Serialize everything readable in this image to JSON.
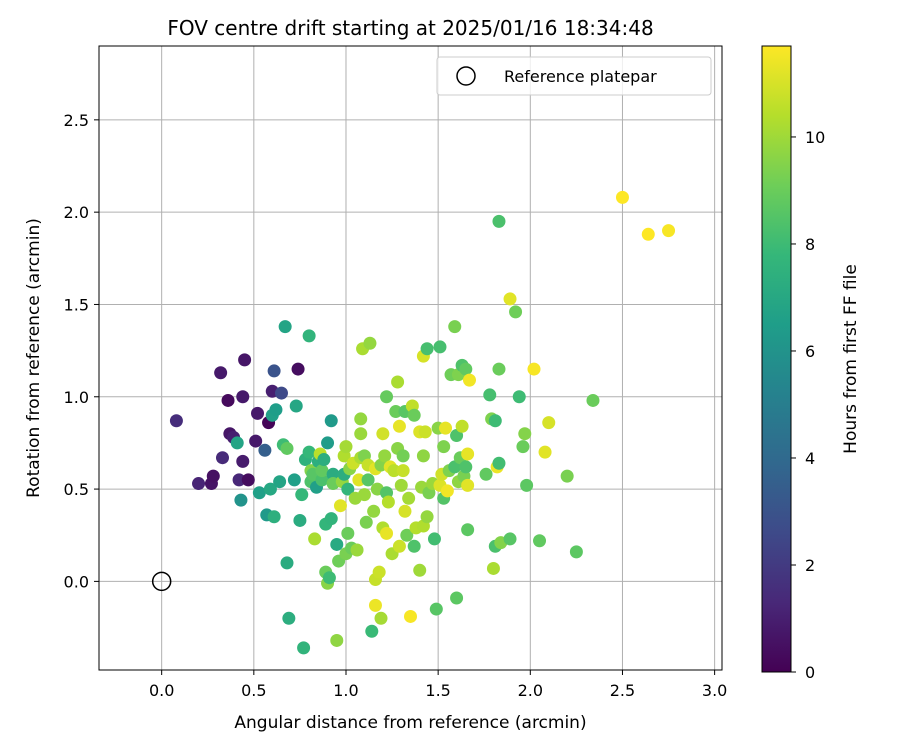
{
  "chart_data": {
    "type": "scatter",
    "title": "FOV centre drift starting at 2025/01/16 18:34:48",
    "xlabel": "Angular distance from reference (arcmin)",
    "ylabel": "Rotation from reference (arcmin)",
    "xlim": [
      -0.34,
      3.04
    ],
    "ylim": [
      -0.48,
      2.9
    ],
    "x_ticks": [
      0.0,
      0.5,
      1.0,
      1.5,
      2.0,
      2.5,
      3.0
    ],
    "y_ticks": [
      0.0,
      0.5,
      1.0,
      1.5,
      2.0,
      2.5
    ],
    "grid": true,
    "legend": {
      "placement": "top-right",
      "entries": [
        "Reference platepar"
      ]
    },
    "reference_point": {
      "name": "Reference platepar",
      "x": 0.0,
      "y": 0.0,
      "marker": "open-circle"
    },
    "colorbar": {
      "label": "Hours from first FF file",
      "colormap": "viridis",
      "range": [
        0,
        11.7
      ],
      "ticks": [
        0,
        2,
        4,
        6,
        8,
        10
      ]
    },
    "series": [
      {
        "value_field": "c (hours)",
        "points": [
          {
            "x": 0.08,
            "y": 0.87,
            "c": 1.5
          },
          {
            "x": 0.2,
            "y": 0.53,
            "c": 1.2
          },
          {
            "x": 0.27,
            "y": 0.53,
            "c": 0.6
          },
          {
            "x": 0.28,
            "y": 0.57,
            "c": 0.5
          },
          {
            "x": 0.32,
            "y": 1.13,
            "c": 0.8
          },
          {
            "x": 0.33,
            "y": 0.67,
            "c": 1.4
          },
          {
            "x": 0.36,
            "y": 0.98,
            "c": 0.3
          },
          {
            "x": 0.37,
            "y": 0.8,
            "c": 0.7
          },
          {
            "x": 0.39,
            "y": 0.78,
            "c": 1.0
          },
          {
            "x": 0.41,
            "y": 0.75,
            "c": 6.8
          },
          {
            "x": 0.42,
            "y": 0.55,
            "c": 1.3
          },
          {
            "x": 0.43,
            "y": 0.44,
            "c": 6.0
          },
          {
            "x": 0.44,
            "y": 0.65,
            "c": 0.9
          },
          {
            "x": 0.44,
            "y": 1.0,
            "c": 0.8
          },
          {
            "x": 0.45,
            "y": 1.2,
            "c": 0.7
          },
          {
            "x": 0.47,
            "y": 0.55,
            "c": 0.4
          },
          {
            "x": 0.51,
            "y": 0.76,
            "c": 0.8
          },
          {
            "x": 0.52,
            "y": 0.91,
            "c": 0.8
          },
          {
            "x": 0.53,
            "y": 0.48,
            "c": 6.6
          },
          {
            "x": 0.56,
            "y": 0.71,
            "c": 3.5
          },
          {
            "x": 0.57,
            "y": 0.36,
            "c": 6.3
          },
          {
            "x": 0.58,
            "y": 0.86,
            "c": 0.1
          },
          {
            "x": 0.59,
            "y": 0.5,
            "c": 7.0
          },
          {
            "x": 0.6,
            "y": 1.03,
            "c": 1.0
          },
          {
            "x": 0.6,
            "y": 0.9,
            "c": 6.6
          },
          {
            "x": 0.61,
            "y": 1.14,
            "c": 3.0
          },
          {
            "x": 0.61,
            "y": 0.35,
            "c": 7.4
          },
          {
            "x": 0.62,
            "y": 0.93,
            "c": 6.5
          },
          {
            "x": 0.64,
            "y": 0.54,
            "c": 6.8
          },
          {
            "x": 0.65,
            "y": 1.02,
            "c": 2.6
          },
          {
            "x": 0.66,
            "y": 0.74,
            "c": 8.0
          },
          {
            "x": 0.67,
            "y": 1.38,
            "c": 6.8
          },
          {
            "x": 0.68,
            "y": 0.72,
            "c": 8.8
          },
          {
            "x": 0.68,
            "y": 0.1,
            "c": 7.2
          },
          {
            "x": 0.69,
            "y": -0.2,
            "c": 7.3
          },
          {
            "x": 0.72,
            "y": 0.55,
            "c": 6.6
          },
          {
            "x": 0.73,
            "y": 0.95,
            "c": 6.9
          },
          {
            "x": 0.74,
            "y": 1.15,
            "c": 0.4
          },
          {
            "x": 0.75,
            "y": 0.33,
            "c": 7.2
          },
          {
            "x": 0.76,
            "y": 0.47,
            "c": 7.8
          },
          {
            "x": 0.77,
            "y": -0.36,
            "c": 7.6
          },
          {
            "x": 0.78,
            "y": 0.66,
            "c": 7.5
          },
          {
            "x": 0.8,
            "y": 1.33,
            "c": 7.6
          },
          {
            "x": 0.8,
            "y": 0.7,
            "c": 7.8
          },
          {
            "x": 0.81,
            "y": 0.54,
            "c": 8.4
          },
          {
            "x": 0.81,
            "y": 0.6,
            "c": 9.5
          },
          {
            "x": 0.82,
            "y": 0.58,
            "c": 8.6
          },
          {
            "x": 0.83,
            "y": 0.23,
            "c": 10.2
          },
          {
            "x": 0.84,
            "y": 0.51,
            "c": 6.6
          },
          {
            "x": 0.85,
            "y": 0.65,
            "c": 7.4
          },
          {
            "x": 0.86,
            "y": 0.69,
            "c": 10.5
          },
          {
            "x": 0.87,
            "y": 0.55,
            "c": 8.3
          },
          {
            "x": 0.87,
            "y": 0.6,
            "c": 8.8
          },
          {
            "x": 0.88,
            "y": 0.66,
            "c": 7.3
          },
          {
            "x": 0.89,
            "y": 0.05,
            "c": 9.0
          },
          {
            "x": 0.89,
            "y": 0.31,
            "c": 7.7
          },
          {
            "x": 0.9,
            "y": -0.01,
            "c": 9.6
          },
          {
            "x": 0.9,
            "y": 0.75,
            "c": 6.4
          },
          {
            "x": 0.91,
            "y": 0.02,
            "c": 8.0
          },
          {
            "x": 0.92,
            "y": 0.87,
            "c": 6.3
          },
          {
            "x": 0.92,
            "y": 0.34,
            "c": 7.6
          },
          {
            "x": 0.93,
            "y": 0.58,
            "c": 7.2
          },
          {
            "x": 0.93,
            "y": 0.53,
            "c": 9.0
          },
          {
            "x": 0.95,
            "y": -0.32,
            "c": 9.7
          },
          {
            "x": 0.95,
            "y": 0.2,
            "c": 7.1
          },
          {
            "x": 0.96,
            "y": 0.11,
            "c": 9.1
          },
          {
            "x": 0.97,
            "y": 0.41,
            "c": 11.2
          },
          {
            "x": 0.98,
            "y": 0.54,
            "c": 9.8
          },
          {
            "x": 0.99,
            "y": 0.58,
            "c": 7.3
          },
          {
            "x": 0.99,
            "y": 0.68,
            "c": 10.3
          },
          {
            "x": 1.0,
            "y": 0.73,
            "c": 10.1
          },
          {
            "x": 1.0,
            "y": 0.15,
            "c": 9.3
          },
          {
            "x": 1.01,
            "y": 0.5,
            "c": 7.7
          },
          {
            "x": 1.01,
            "y": 0.26,
            "c": 9.0
          },
          {
            "x": 1.02,
            "y": 0.61,
            "c": 9.6
          },
          {
            "x": 1.03,
            "y": 0.18,
            "c": 9.0
          },
          {
            "x": 1.04,
            "y": 0.64,
            "c": 10.8
          },
          {
            "x": 1.05,
            "y": 0.45,
            "c": 9.9
          },
          {
            "x": 1.06,
            "y": 0.17,
            "c": 9.9
          },
          {
            "x": 1.07,
            "y": 0.55,
            "c": 11.2
          },
          {
            "x": 1.08,
            "y": 0.67,
            "c": 10.2
          },
          {
            "x": 1.08,
            "y": 0.88,
            "c": 9.8
          },
          {
            "x": 1.08,
            "y": 0.8,
            "c": 9.9
          },
          {
            "x": 1.09,
            "y": 1.26,
            "c": 10.2
          },
          {
            "x": 1.1,
            "y": 0.47,
            "c": 9.9
          },
          {
            "x": 1.1,
            "y": 0.68,
            "c": 9.4
          },
          {
            "x": 1.11,
            "y": 0.32,
            "c": 9.3
          },
          {
            "x": 1.12,
            "y": 0.63,
            "c": 10.7
          },
          {
            "x": 1.12,
            "y": 0.55,
            "c": 8.6
          },
          {
            "x": 1.13,
            "y": 1.29,
            "c": 9.8
          },
          {
            "x": 1.14,
            "y": -0.27,
            "c": 7.9
          },
          {
            "x": 1.15,
            "y": 0.38,
            "c": 9.8
          },
          {
            "x": 1.16,
            "y": 0.61,
            "c": 11.2
          },
          {
            "x": 1.16,
            "y": 0.01,
            "c": 10.7
          },
          {
            "x": 1.16,
            "y": -0.13,
            "c": 11.4
          },
          {
            "x": 1.17,
            "y": 0.5,
            "c": 9.6
          },
          {
            "x": 1.18,
            "y": 0.05,
            "c": 10.8
          },
          {
            "x": 1.19,
            "y": 0.63,
            "c": 9.5
          },
          {
            "x": 1.19,
            "y": -0.2,
            "c": 10.1
          },
          {
            "x": 1.2,
            "y": 0.29,
            "c": 10.3
          },
          {
            "x": 1.2,
            "y": 0.8,
            "c": 10.9
          },
          {
            "x": 1.21,
            "y": 0.68,
            "c": 9.8
          },
          {
            "x": 1.22,
            "y": 0.26,
            "c": 11.3
          },
          {
            "x": 1.22,
            "y": 1.0,
            "c": 8.9
          },
          {
            "x": 1.22,
            "y": 0.48,
            "c": 8.5
          },
          {
            "x": 1.23,
            "y": 0.43,
            "c": 10.4
          },
          {
            "x": 1.24,
            "y": 0.62,
            "c": 11.2
          },
          {
            "x": 1.25,
            "y": 0.15,
            "c": 10.2
          },
          {
            "x": 1.26,
            "y": 0.6,
            "c": 10.5
          },
          {
            "x": 1.27,
            "y": 0.92,
            "c": 9.0
          },
          {
            "x": 1.28,
            "y": 1.08,
            "c": 10.2
          },
          {
            "x": 1.28,
            "y": 0.72,
            "c": 9.6
          },
          {
            "x": 1.29,
            "y": 0.19,
            "c": 10.8
          },
          {
            "x": 1.29,
            "y": 0.84,
            "c": 11.3
          },
          {
            "x": 1.3,
            "y": 0.52,
            "c": 10.0
          },
          {
            "x": 1.31,
            "y": 0.68,
            "c": 9.2
          },
          {
            "x": 1.31,
            "y": 0.6,
            "c": 10.7
          },
          {
            "x": 1.32,
            "y": 0.92,
            "c": 8.6
          },
          {
            "x": 1.32,
            "y": 0.38,
            "c": 11.0
          },
          {
            "x": 1.33,
            "y": 0.25,
            "c": 9.1
          },
          {
            "x": 1.34,
            "y": 0.45,
            "c": 10.1
          },
          {
            "x": 1.35,
            "y": -0.19,
            "c": 11.6
          },
          {
            "x": 1.36,
            "y": 0.95,
            "c": 10.6
          },
          {
            "x": 1.37,
            "y": 0.9,
            "c": 9.0
          },
          {
            "x": 1.37,
            "y": 0.19,
            "c": 8.4
          },
          {
            "x": 1.38,
            "y": 0.29,
            "c": 10.4
          },
          {
            "x": 1.4,
            "y": 0.06,
            "c": 10.0
          },
          {
            "x": 1.4,
            "y": 0.81,
            "c": 11.1
          },
          {
            "x": 1.41,
            "y": 0.51,
            "c": 9.9
          },
          {
            "x": 1.42,
            "y": 0.3,
            "c": 10.3
          },
          {
            "x": 1.42,
            "y": 1.22,
            "c": 11.0
          },
          {
            "x": 1.42,
            "y": 0.68,
            "c": 9.7
          },
          {
            "x": 1.43,
            "y": 0.81,
            "c": 10.8
          },
          {
            "x": 1.44,
            "y": 0.35,
            "c": 9.8
          },
          {
            "x": 1.44,
            "y": 1.26,
            "c": 8.2
          },
          {
            "x": 1.45,
            "y": 0.48,
            "c": 9.3
          },
          {
            "x": 1.47,
            "y": 0.53,
            "c": 9.9
          },
          {
            "x": 1.48,
            "y": 0.23,
            "c": 8.1
          },
          {
            "x": 1.49,
            "y": -0.15,
            "c": 8.6
          },
          {
            "x": 1.5,
            "y": 0.83,
            "c": 9.6
          },
          {
            "x": 1.51,
            "y": 0.52,
            "c": 11.1
          },
          {
            "x": 1.51,
            "y": 1.27,
            "c": 8.2
          },
          {
            "x": 1.52,
            "y": 0.58,
            "c": 10.9
          },
          {
            "x": 1.53,
            "y": 0.45,
            "c": 8.5
          },
          {
            "x": 1.53,
            "y": 0.73,
            "c": 9.4
          },
          {
            "x": 1.54,
            "y": 0.83,
            "c": 11.3
          },
          {
            "x": 1.55,
            "y": 0.49,
            "c": 11.5
          },
          {
            "x": 1.56,
            "y": 0.6,
            "c": 9.4
          },
          {
            "x": 1.57,
            "y": 1.12,
            "c": 9.1
          },
          {
            "x": 1.59,
            "y": 0.62,
            "c": 8.3
          },
          {
            "x": 1.59,
            "y": 1.38,
            "c": 9.3
          },
          {
            "x": 1.6,
            "y": -0.09,
            "c": 8.7
          },
          {
            "x": 1.6,
            "y": 0.79,
            "c": 8.4
          },
          {
            "x": 1.61,
            "y": 1.12,
            "c": 9.4
          },
          {
            "x": 1.61,
            "y": 0.54,
            "c": 9.7
          },
          {
            "x": 1.62,
            "y": 0.67,
            "c": 9.0
          },
          {
            "x": 1.63,
            "y": 1.17,
            "c": 8.4
          },
          {
            "x": 1.63,
            "y": 0.84,
            "c": 10.6
          },
          {
            "x": 1.64,
            "y": 0.57,
            "c": 9.3
          },
          {
            "x": 1.65,
            "y": 0.62,
            "c": 8.4
          },
          {
            "x": 1.65,
            "y": 1.15,
            "c": 8.8
          },
          {
            "x": 1.66,
            "y": 0.28,
            "c": 8.7
          },
          {
            "x": 1.66,
            "y": 0.69,
            "c": 11.3
          },
          {
            "x": 1.66,
            "y": 0.52,
            "c": 11.2
          },
          {
            "x": 1.67,
            "y": 1.09,
            "c": 11.5
          },
          {
            "x": 1.76,
            "y": 0.58,
            "c": 8.8
          },
          {
            "x": 1.78,
            "y": 1.01,
            "c": 8.2
          },
          {
            "x": 1.79,
            "y": 0.88,
            "c": 9.4
          },
          {
            "x": 1.8,
            "y": 0.07,
            "c": 10.2
          },
          {
            "x": 1.81,
            "y": 0.87,
            "c": 8.0
          },
          {
            "x": 1.81,
            "y": 0.19,
            "c": 8.3
          },
          {
            "x": 1.82,
            "y": 0.62,
            "c": 11.4
          },
          {
            "x": 1.83,
            "y": 0.64,
            "c": 8.1
          },
          {
            "x": 1.83,
            "y": 1.95,
            "c": 8.3
          },
          {
            "x": 1.83,
            "y": 1.15,
            "c": 9.0
          },
          {
            "x": 1.84,
            "y": 0.21,
            "c": 9.5
          },
          {
            "x": 1.89,
            "y": 0.23,
            "c": 8.6
          },
          {
            "x": 1.89,
            "y": 1.53,
            "c": 11.2
          },
          {
            "x": 1.92,
            "y": 1.46,
            "c": 9.1
          },
          {
            "x": 1.94,
            "y": 1.0,
            "c": 8.0
          },
          {
            "x": 1.96,
            "y": 0.73,
            "c": 9.0
          },
          {
            "x": 1.97,
            "y": 0.8,
            "c": 9.5
          },
          {
            "x": 1.98,
            "y": 0.52,
            "c": 8.7
          },
          {
            "x": 2.02,
            "y": 1.15,
            "c": 11.6
          },
          {
            "x": 2.05,
            "y": 0.22,
            "c": 8.8
          },
          {
            "x": 2.08,
            "y": 0.7,
            "c": 11.2
          },
          {
            "x": 2.1,
            "y": 0.86,
            "c": 11.0
          },
          {
            "x": 2.2,
            "y": 0.57,
            "c": 9.3
          },
          {
            "x": 2.25,
            "y": 0.16,
            "c": 8.7
          },
          {
            "x": 2.34,
            "y": 0.98,
            "c": 9.0
          },
          {
            "x": 2.5,
            "y": 2.08,
            "c": 11.7
          },
          {
            "x": 2.64,
            "y": 1.88,
            "c": 11.7
          },
          {
            "x": 2.75,
            "y": 1.9,
            "c": 11.6
          }
        ]
      }
    ]
  }
}
